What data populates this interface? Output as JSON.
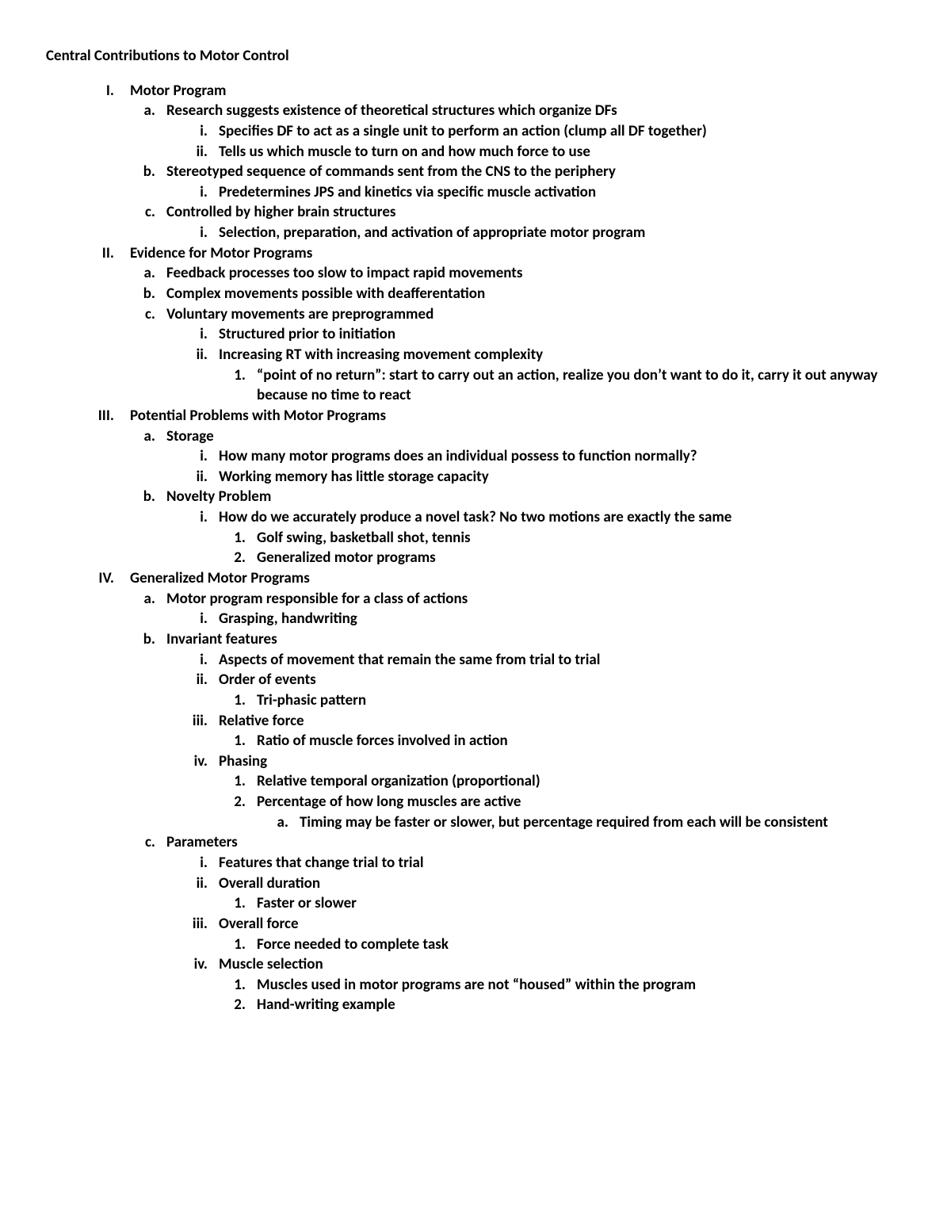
{
  "title": "Central Contributions to Motor Control",
  "text_color": "#000000",
  "background_color": "#ffffff",
  "font_weight": "bold",
  "outline": [
    {
      "marker": "I.",
      "text": "Motor Program",
      "children": [
        {
          "marker": "a.",
          "text": "Research suggests existence of theoretical structures which organize DFs",
          "children": [
            {
              "marker": "i.",
              "text": "Specifies DF to act as a single unit to perform an action (clump all DF together)"
            },
            {
              "marker": "ii.",
              "text": "Tells us which muscle to turn on and how much force to use"
            }
          ]
        },
        {
          "marker": "b.",
          "text": "Stereotyped sequence of commands sent from the CNS to the periphery",
          "children": [
            {
              "marker": "i.",
              "text": "Predetermines JPS and kinetics via specific muscle activation"
            }
          ]
        },
        {
          "marker": "c.",
          "text": "Controlled by higher brain structures",
          "children": [
            {
              "marker": "i.",
              "text": "Selection, preparation, and activation of appropriate motor program"
            }
          ]
        }
      ]
    },
    {
      "marker": "II.",
      "text": "Evidence for Motor Programs",
      "children": [
        {
          "marker": "a.",
          "text": "Feedback processes too slow to impact rapid movements"
        },
        {
          "marker": "b.",
          "text": "Complex movements possible with deafferentation"
        },
        {
          "marker": "c.",
          "text": "Voluntary movements are preprogrammed",
          "children": [
            {
              "marker": "i.",
              "text": "Structured prior to initiation"
            },
            {
              "marker": "ii.",
              "text": "Increasing RT with increasing movement complexity",
              "children": [
                {
                  "marker": "1.",
                  "text": "“point of no return”: start to carry out an action, realize you don’t want to do it, carry it out anyway because no time to react"
                }
              ]
            }
          ]
        }
      ]
    },
    {
      "marker": "III.",
      "text": "Potential Problems with Motor Programs",
      "children": [
        {
          "marker": "a.",
          "text": "Storage",
          "children": [
            {
              "marker": "i.",
              "text": "How many motor programs does an individual possess to function normally?"
            },
            {
              "marker": "ii.",
              "text": "Working memory has little storage capacity"
            }
          ]
        },
        {
          "marker": "b.",
          "text": "Novelty Problem",
          "children": [
            {
              "marker": "i.",
              "text": "How do we accurately produce a novel task? No two motions are exactly the same",
              "children": [
                {
                  "marker": "1.",
                  "text": "Golf swing, basketball shot, tennis"
                },
                {
                  "marker": "2.",
                  "text": "Generalized motor programs"
                }
              ]
            }
          ]
        }
      ]
    },
    {
      "marker": "IV.",
      "text": "Generalized Motor Programs",
      "children": [
        {
          "marker": "a.",
          "text": "Motor program responsible for a class of actions",
          "children": [
            {
              "marker": "i.",
              "text": "Grasping, handwriting"
            }
          ]
        },
        {
          "marker": "b.",
          "text": "Invariant features",
          "children": [
            {
              "marker": "i.",
              "text": "Aspects of movement that remain the same from trial to trial"
            },
            {
              "marker": "ii.",
              "text": "Order of events",
              "children": [
                {
                  "marker": "1.",
                  "text": "Tri-phasic pattern"
                }
              ]
            },
            {
              "marker": "iii.",
              "text": "Relative force",
              "children": [
                {
                  "marker": "1.",
                  "text": "Ratio of muscle forces involved in action"
                }
              ]
            },
            {
              "marker": "iv.",
              "text": "Phasing",
              "children": [
                {
                  "marker": "1.",
                  "text": "Relative temporal organization (proportional)"
                },
                {
                  "marker": "2.",
                  "text": "Percentage of how long muscles are active",
                  "children": [
                    {
                      "marker": "a.",
                      "text": "Timing may be faster or slower, but percentage required from each will be consistent"
                    }
                  ]
                }
              ]
            }
          ]
        },
        {
          "marker": "c.",
          "text": "Parameters",
          "children": [
            {
              "marker": "i.",
              "text": "Features that change trial to trial"
            },
            {
              "marker": "ii.",
              "text": "Overall duration",
              "children": [
                {
                  "marker": "1.",
                  "text": "Faster or slower"
                }
              ]
            },
            {
              "marker": "iii.",
              "text": "Overall force",
              "children": [
                {
                  "marker": "1.",
                  "text": "Force needed to complete task"
                }
              ]
            },
            {
              "marker": "iv.",
              "text": "Muscle selection",
              "children": [
                {
                  "marker": "1.",
                  "text": "Muscles used in motor programs are not “housed” within the program"
                },
                {
                  "marker": "2.",
                  "text": "Hand-writing example"
                }
              ]
            }
          ]
        }
      ]
    }
  ]
}
